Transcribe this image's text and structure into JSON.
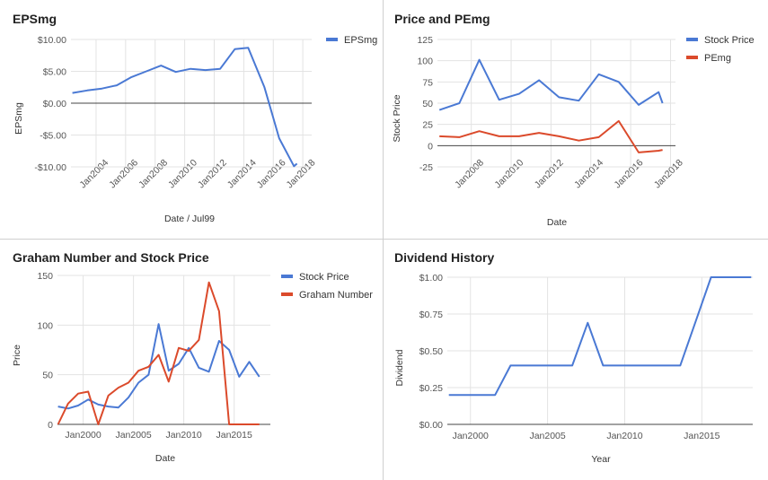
{
  "chart_data": [
    {
      "type": "line",
      "title": "EPSmg",
      "xlabel": "Date / Jul99",
      "ylabel": "EPSmg",
      "xlim": [
        2002.3,
        2018.6
      ],
      "ylim": [
        -10,
        10
      ],
      "yticks": [
        {
          "v": 10,
          "label": "$10.00"
        },
        {
          "v": 5,
          "label": "$5.00"
        },
        {
          "v": 0,
          "label": "$0.00"
        },
        {
          "v": -5,
          "label": "-$5.00"
        },
        {
          "v": -10,
          "label": "-$10.00"
        }
      ],
      "xticks": [
        {
          "v": 2004,
          "label": "Jan2004"
        },
        {
          "v": 2006,
          "label": "Jan2006"
        },
        {
          "v": 2008,
          "label": "Jan2008"
        },
        {
          "v": 2010,
          "label": "Jan2010"
        },
        {
          "v": 2012,
          "label": "Jan2012"
        },
        {
          "v": 2014,
          "label": "Jan2014"
        },
        {
          "v": 2016,
          "label": "Jan2016"
        },
        {
          "v": 2018,
          "label": "Jan2018"
        }
      ],
      "grid": true,
      "legend": "top-right",
      "series": [
        {
          "name": "EPSmg",
          "color": "#4a79d4",
          "points": [
            [
              2002.4,
              1.6
            ],
            [
              2003.4,
              2.0
            ],
            [
              2004.4,
              2.3
            ],
            [
              2005.4,
              2.8
            ],
            [
              2006.4,
              4.1
            ],
            [
              2007.4,
              5.0
            ],
            [
              2008.4,
              5.9
            ],
            [
              2009.4,
              4.9
            ],
            [
              2010.4,
              5.4
            ],
            [
              2011.4,
              5.2
            ],
            [
              2012.4,
              5.4
            ],
            [
              2013.4,
              8.5
            ],
            [
              2014.3,
              8.7
            ],
            [
              2015.4,
              2.5
            ],
            [
              2016.4,
              -5.5
            ],
            [
              2017.4,
              -9.9
            ],
            [
              2017.6,
              -9.5
            ]
          ]
        }
      ]
    },
    {
      "type": "line",
      "title": "Price and PEmg",
      "xlabel": "Date",
      "ylabel": "Stock Price",
      "xlim": [
        2006.3,
        2018.25
      ],
      "ylim": [
        -25,
        125
      ],
      "yticks": [
        {
          "v": 125,
          "label": "125"
        },
        {
          "v": 100,
          "label": "100"
        },
        {
          "v": 75,
          "label": "75"
        },
        {
          "v": 50,
          "label": "50"
        },
        {
          "v": 25,
          "label": "25"
        },
        {
          "v": 0,
          "label": "0"
        },
        {
          "v": -25,
          "label": "-25"
        }
      ],
      "xticks": [
        {
          "v": 2008,
          "label": "Jan2008"
        },
        {
          "v": 2010,
          "label": "Jan2010"
        },
        {
          "v": 2012,
          "label": "Jan2012"
        },
        {
          "v": 2014,
          "label": "Jan2014"
        },
        {
          "v": 2016,
          "label": "Jan2016"
        },
        {
          "v": 2018,
          "label": "Jan2018"
        }
      ],
      "grid": true,
      "legend": "top-right",
      "series": [
        {
          "name": "Stock Price",
          "color": "#4a79d4",
          "points": [
            [
              2006.4,
              42
            ],
            [
              2007.4,
              50
            ],
            [
              2008.4,
              101
            ],
            [
              2009.4,
              54
            ],
            [
              2010.4,
              61
            ],
            [
              2011.4,
              77
            ],
            [
              2012.4,
              57
            ],
            [
              2013.4,
              53
            ],
            [
              2014.4,
              84
            ],
            [
              2015.4,
              75
            ],
            [
              2016.4,
              48
            ],
            [
              2017.4,
              63
            ],
            [
              2017.6,
              50
            ]
          ]
        },
        {
          "name": "PEmg",
          "color": "#db4a2b",
          "points": [
            [
              2006.4,
              11
            ],
            [
              2007.4,
              10
            ],
            [
              2008.4,
              17
            ],
            [
              2009.4,
              11
            ],
            [
              2010.4,
              11
            ],
            [
              2011.4,
              15
            ],
            [
              2012.4,
              11
            ],
            [
              2013.4,
              6
            ],
            [
              2014.4,
              10
            ],
            [
              2015.4,
              29
            ],
            [
              2016.4,
              -8
            ],
            [
              2017.4,
              -6
            ],
            [
              2017.6,
              -5
            ]
          ]
        }
      ]
    },
    {
      "type": "line",
      "title": "Graham Number and Stock Price",
      "xlabel": "Date",
      "ylabel": "Price",
      "xlim": [
        1997.45,
        2018.6
      ],
      "ylim": [
        0,
        150
      ],
      "yticks": [
        {
          "v": 150,
          "label": "150"
        },
        {
          "v": 100,
          "label": "100"
        },
        {
          "v": 50,
          "label": "50"
        },
        {
          "v": 0,
          "label": "0"
        }
      ],
      "xticks": [
        {
          "v": 2000,
          "label": "Jan2000"
        },
        {
          "v": 2005,
          "label": "Jan2005"
        },
        {
          "v": 2010,
          "label": "Jan2010"
        },
        {
          "v": 2015,
          "label": "Jan2015"
        }
      ],
      "grid": true,
      "legend": "top-right",
      "series": [
        {
          "name": "Stock Price",
          "color": "#4a79d4",
          "points": [
            [
              1997.5,
              18
            ],
            [
              1998.5,
              16
            ],
            [
              1999.5,
              19
            ],
            [
              2000.5,
              25
            ],
            [
              2001.5,
              20
            ],
            [
              2002.5,
              18
            ],
            [
              2003.5,
              17
            ],
            [
              2004.5,
              27
            ],
            [
              2005.5,
              42
            ],
            [
              2006.5,
              50
            ],
            [
              2007.5,
              101
            ],
            [
              2008.5,
              54
            ],
            [
              2009.5,
              61
            ],
            [
              2010.5,
              77
            ],
            [
              2011.5,
              57
            ],
            [
              2012.5,
              53
            ],
            [
              2013.5,
              84
            ],
            [
              2014.5,
              75
            ],
            [
              2015.5,
              48
            ],
            [
              2016.5,
              63
            ],
            [
              2017.5,
              48
            ]
          ]
        },
        {
          "name": "Graham Number",
          "color": "#db4a2b",
          "points": [
            [
              1997.5,
              0
            ],
            [
              1998.5,
              21
            ],
            [
              1999.5,
              31
            ],
            [
              2000.5,
              33
            ],
            [
              2001.5,
              0
            ],
            [
              2002.5,
              29
            ],
            [
              2003.5,
              37
            ],
            [
              2004.5,
              42
            ],
            [
              2005.5,
              54
            ],
            [
              2006.5,
              58
            ],
            [
              2007.5,
              70
            ],
            [
              2008.5,
              43
            ],
            [
              2009.5,
              77
            ],
            [
              2010.5,
              74
            ],
            [
              2011.5,
              85
            ],
            [
              2012.5,
              143
            ],
            [
              2013.5,
              114
            ],
            [
              2014.5,
              0
            ],
            [
              2015.5,
              0
            ],
            [
              2016.5,
              0
            ],
            [
              2017.5,
              0
            ]
          ]
        }
      ]
    },
    {
      "type": "line",
      "title": "Dividend History",
      "xlabel": "Year",
      "ylabel": "Dividend",
      "xlim": [
        1998.5,
        2018.3
      ],
      "ylim": [
        0,
        1
      ],
      "yticks": [
        {
          "v": 1,
          "label": "$1.00"
        },
        {
          "v": 0.75,
          "label": "$0.75"
        },
        {
          "v": 0.5,
          "label": "$0.50"
        },
        {
          "v": 0.25,
          "label": "$0.25"
        },
        {
          "v": 0,
          "label": "$0.00"
        }
      ],
      "xticks": [
        {
          "v": 2000,
          "label": "Jan2000"
        },
        {
          "v": 2005,
          "label": "Jan2005"
        },
        {
          "v": 2010,
          "label": "Jan2010"
        },
        {
          "v": 2015,
          "label": "Jan2015"
        }
      ],
      "grid": true,
      "legend": "none",
      "series": [
        {
          "name": "",
          "color": "#4a79d4",
          "points": [
            [
              1998.6,
              0.2
            ],
            [
              1999.6,
              0.2
            ],
            [
              2000.6,
              0.2
            ],
            [
              2001.6,
              0.2
            ],
            [
              2002.6,
              0.4
            ],
            [
              2003.6,
              0.4
            ],
            [
              2004.6,
              0.4
            ],
            [
              2005.6,
              0.4
            ],
            [
              2006.6,
              0.4
            ],
            [
              2007.6,
              0.69
            ],
            [
              2008.6,
              0.4
            ],
            [
              2009.6,
              0.4
            ],
            [
              2010.6,
              0.4
            ],
            [
              2011.6,
              0.4
            ],
            [
              2012.6,
              0.4
            ],
            [
              2013.6,
              0.4
            ],
            [
              2014.6,
              0.7
            ],
            [
              2015.6,
              1.0
            ],
            [
              2016.6,
              1.0
            ],
            [
              2017.6,
              1.0
            ],
            [
              2018.2,
              1.0
            ]
          ]
        }
      ]
    }
  ]
}
